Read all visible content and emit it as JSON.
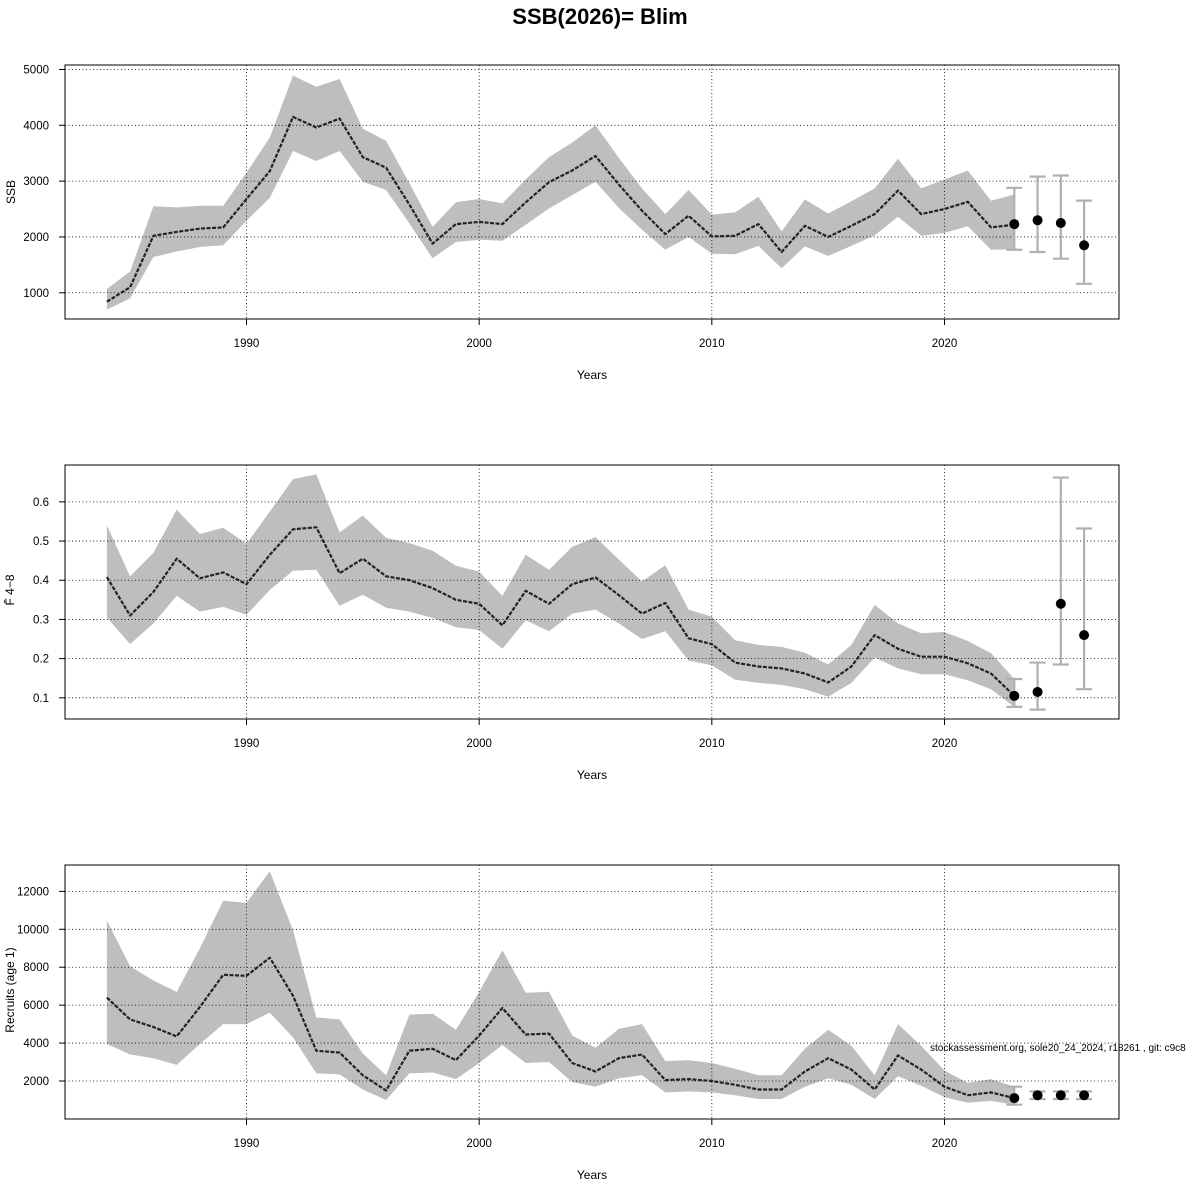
{
  "figure": {
    "title": "SSB(2026)= Blim",
    "footnote": "stockassessment.org, sole20_24_2024, r18261 , git: c9c8"
  },
  "chart_data": [
    {
      "type": "line",
      "ylabel": "SSB",
      "xlabel": "Years",
      "xlim": [
        1982.2,
        2027.5
      ],
      "ylim": [
        530,
        5080
      ],
      "xticks": [
        1990,
        2000,
        2010,
        2020
      ],
      "yticks": [
        1000,
        2000,
        3000,
        4000,
        5000
      ],
      "ytick_labels": [
        "1000",
        "2000",
        "3000",
        "4000",
        "5000"
      ],
      "grid": true,
      "series": [
        {
          "x": [
            1984,
            1985,
            1986,
            1987,
            1988,
            1989,
            1990,
            1991,
            1992,
            1993,
            1994,
            1995,
            1996,
            1997,
            1998,
            1999,
            2000,
            2001,
            2002,
            2003,
            2004,
            2005,
            2006,
            2007,
            2008,
            2009,
            2010,
            2011,
            2012,
            2013,
            2014,
            2015,
            2016,
            2017,
            2018,
            2019,
            2020,
            2021,
            2022,
            2023
          ],
          "y": [
            840,
            1100,
            2020,
            2090,
            2150,
            2170,
            2680,
            3180,
            4150,
            3960,
            4120,
            3430,
            3240,
            2580,
            1880,
            2230,
            2270,
            2230,
            2620,
            2980,
            3190,
            3450,
            2940,
            2470,
            2050,
            2380,
            2010,
            2020,
            2230,
            1730,
            2200,
            2000,
            2200,
            2410,
            2830,
            2410,
            2500,
            2630,
            2170,
            2220
          ],
          "lower": [
            700,
            900,
            1640,
            1740,
            1820,
            1850,
            2290,
            2700,
            3540,
            3360,
            3540,
            2990,
            2840,
            2240,
            1620,
            1910,
            1950,
            1930,
            2220,
            2510,
            2750,
            2990,
            2520,
            2130,
            1770,
            2000,
            1700,
            1690,
            1840,
            1440,
            1830,
            1660,
            1840,
            2030,
            2360,
            2020,
            2070,
            2190,
            1770,
            1780
          ],
          "upper": [
            1070,
            1380,
            2550,
            2530,
            2560,
            2560,
            3150,
            3780,
            4890,
            4690,
            4830,
            3940,
            3720,
            2960,
            2180,
            2620,
            2680,
            2600,
            3030,
            3430,
            3690,
            4000,
            3420,
            2870,
            2410,
            2840,
            2400,
            2440,
            2720,
            2100,
            2670,
            2420,
            2640,
            2870,
            3400,
            2870,
            3030,
            3190,
            2650,
            2760
          ]
        }
      ],
      "forecast": {
        "x": [
          2023,
          2024,
          2025,
          2026
        ],
        "y": [
          2230,
          2300,
          2250,
          1850
        ],
        "lower": [
          1770,
          1730,
          1610,
          1160
        ],
        "upper": [
          2880,
          3080,
          3100,
          2650
        ]
      }
    },
    {
      "type": "line",
      "ylabel": "F̄ 4−8",
      "xlabel": "Years",
      "xlim": [
        1982.2,
        2027.5
      ],
      "ylim": [
        0.046,
        0.694
      ],
      "xticks": [
        1990,
        2000,
        2010,
        2020
      ],
      "yticks": [
        0.1,
        0.2,
        0.3,
        0.4,
        0.5,
        0.6
      ],
      "ytick_labels": [
        "0.1",
        "0.2",
        "0.3",
        "0.4",
        "0.5",
        "0.6"
      ],
      "grid": true,
      "series": [
        {
          "x": [
            1984,
            1985,
            1986,
            1987,
            1988,
            1989,
            1990,
            1991,
            1992,
            1993,
            1994,
            1995,
            1996,
            1997,
            1998,
            1999,
            2000,
            2001,
            2002,
            2003,
            2004,
            2005,
            2006,
            2007,
            2008,
            2009,
            2010,
            2011,
            2012,
            2013,
            2014,
            2015,
            2016,
            2017,
            2018,
            2019,
            2020,
            2021,
            2022,
            2023
          ],
          "y": [
            0.408,
            0.31,
            0.37,
            0.455,
            0.405,
            0.42,
            0.39,
            0.465,
            0.53,
            0.535,
            0.418,
            0.455,
            0.41,
            0.4,
            0.38,
            0.35,
            0.34,
            0.285,
            0.373,
            0.34,
            0.39,
            0.407,
            0.362,
            0.315,
            0.342,
            0.252,
            0.237,
            0.19,
            0.18,
            0.175,
            0.162,
            0.139,
            0.18,
            0.26,
            0.225,
            0.205,
            0.205,
            0.188,
            0.162,
            0.105
          ],
          "lower": [
            0.305,
            0.237,
            0.29,
            0.36,
            0.32,
            0.332,
            0.312,
            0.375,
            0.424,
            0.427,
            0.335,
            0.363,
            0.33,
            0.32,
            0.304,
            0.28,
            0.273,
            0.225,
            0.298,
            0.27,
            0.315,
            0.325,
            0.29,
            0.25,
            0.27,
            0.195,
            0.183,
            0.146,
            0.138,
            0.133,
            0.122,
            0.103,
            0.138,
            0.203,
            0.175,
            0.16,
            0.16,
            0.145,
            0.122,
            0.077
          ],
          "upper": [
            0.54,
            0.41,
            0.47,
            0.58,
            0.518,
            0.534,
            0.493,
            0.575,
            0.658,
            0.67,
            0.522,
            0.565,
            0.508,
            0.495,
            0.475,
            0.437,
            0.422,
            0.36,
            0.465,
            0.427,
            0.485,
            0.51,
            0.453,
            0.397,
            0.438,
            0.325,
            0.307,
            0.247,
            0.235,
            0.23,
            0.215,
            0.185,
            0.235,
            0.337,
            0.29,
            0.265,
            0.268,
            0.245,
            0.214,
            0.148
          ]
        }
      ],
      "forecast": {
        "x": [
          2023,
          2024,
          2025,
          2026
        ],
        "y": [
          0.105,
          0.115,
          0.34,
          0.26
        ],
        "lower": [
          0.077,
          0.07,
          0.185,
          0.122
        ],
        "upper": [
          0.148,
          0.19,
          0.662,
          0.532
        ]
      }
    },
    {
      "type": "line",
      "ylabel": "Recruits (age 1)",
      "xlabel": "Years",
      "xlim": [
        1982.2,
        2027.5
      ],
      "ylim": [
        -3.5,
        13390
      ],
      "xticks": [
        1990,
        2000,
        2010,
        2020
      ],
      "yticks": [
        2000,
        4000,
        6000,
        8000,
        10000,
        12000
      ],
      "ytick_labels": [
        "2000",
        "4000",
        "6000",
        "8000",
        "10000",
        "12000"
      ],
      "grid": true,
      "series": [
        {
          "x": [
            1984,
            1985,
            1986,
            1987,
            1988,
            1989,
            1990,
            1991,
            1992,
            1993,
            1994,
            1995,
            1996,
            1997,
            1998,
            1999,
            2000,
            2001,
            2002,
            2003,
            2004,
            2005,
            2006,
            2007,
            2008,
            2009,
            2010,
            2011,
            2012,
            2013,
            2014,
            2015,
            2016,
            2017,
            2018,
            2019,
            2020,
            2021,
            2022,
            2023
          ],
          "y": [
            6400,
            5250,
            4850,
            4350,
            5900,
            7600,
            7550,
            8500,
            6500,
            3600,
            3500,
            2300,
            1500,
            3600,
            3700,
            3100,
            4400,
            5850,
            4450,
            4500,
            2950,
            2500,
            3200,
            3400,
            2050,
            2100,
            2000,
            1800,
            1550,
            1550,
            2500,
            3200,
            2600,
            1550,
            3350,
            2600,
            1700,
            1250,
            1400,
            1100
          ],
          "lower": [
            3950,
            3400,
            3200,
            2850,
            3950,
            5000,
            5000,
            5600,
            4300,
            2400,
            2350,
            1550,
            1000,
            2400,
            2450,
            2100,
            2950,
            3900,
            2950,
            3000,
            1950,
            1700,
            2150,
            2300,
            1400,
            1450,
            1400,
            1250,
            1050,
            1050,
            1700,
            2150,
            1800,
            1050,
            2250,
            1750,
            1150,
            850,
            950,
            750
          ],
          "upper": [
            10450,
            8050,
            7300,
            6700,
            9000,
            11500,
            11400,
            13050,
            9950,
            5350,
            5250,
            3450,
            2300,
            5500,
            5550,
            4700,
            6700,
            8900,
            6650,
            6700,
            4400,
            3750,
            4750,
            5000,
            3050,
            3100,
            2950,
            2650,
            2300,
            2300,
            3700,
            4700,
            3850,
            2300,
            5000,
            3850,
            2550,
            1900,
            2100,
            1700
          ]
        }
      ],
      "forecast": {
        "x": [
          2023,
          2024,
          2025,
          2026
        ],
        "y": [
          1100,
          1250,
          1250,
          1250
        ],
        "lower": [
          750,
          1050,
          1050,
          1050
        ],
        "upper": [
          1700,
          1450,
          1450,
          1450
        ]
      }
    }
  ]
}
